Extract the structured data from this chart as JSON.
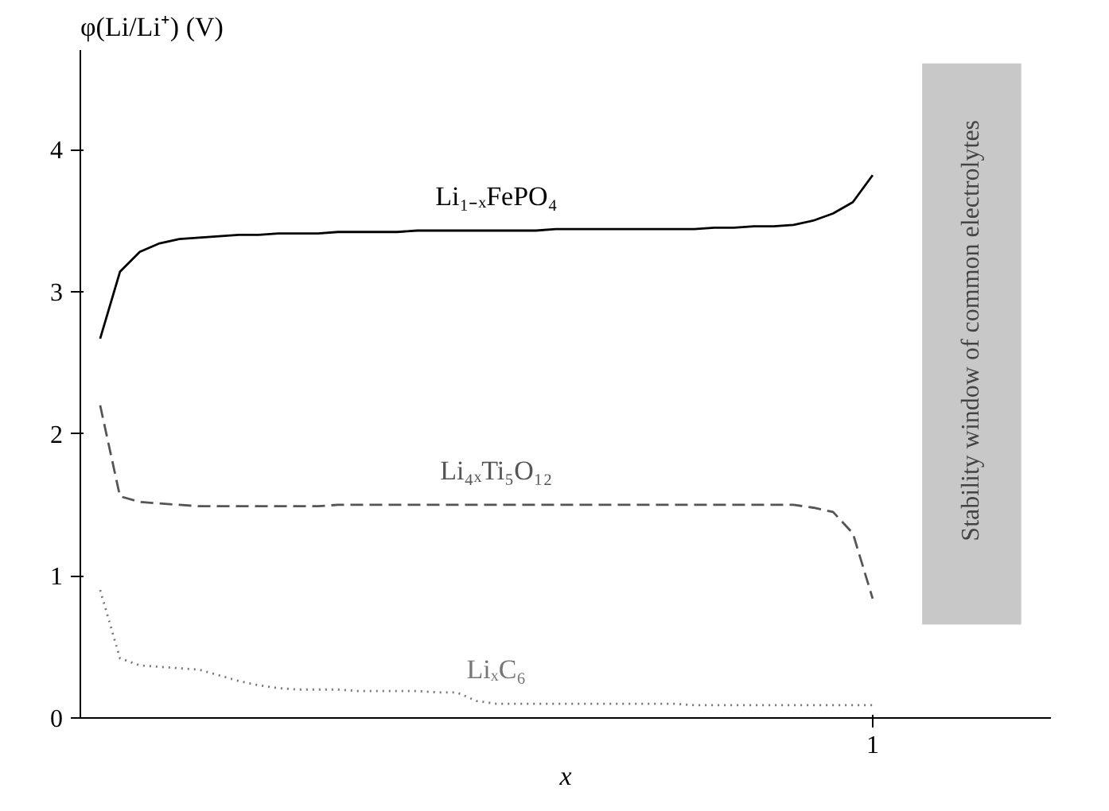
{
  "chart_data": {
    "type": "line",
    "ylabel": "φ(Li/Li⁺) (V)",
    "xlabel": "x",
    "ylim": [
      0,
      4.7
    ],
    "yticks": [
      0,
      1,
      2,
      3,
      4
    ],
    "grid": false,
    "marker": "none",
    "categories": [
      null,
      null,
      null,
      null,
      null,
      null,
      null,
      null,
      null,
      null,
      null,
      null,
      null,
      null,
      null,
      null,
      null,
      null,
      null,
      null,
      null,
      null,
      null,
      null,
      null,
      null,
      null,
      null,
      null,
      null,
      null,
      null,
      null,
      null,
      null,
      null,
      null,
      null,
      null,
      "1"
    ],
    "annotations": [
      "Stability window of common electrolytes"
    ],
    "series": [
      {
        "name": "Li₁₋ₓFePO₄",
        "color": "#000000",
        "line_style": "solid",
        "values": [
          2.67,
          3.14,
          3.28,
          3.34,
          3.37,
          3.38,
          3.39,
          3.4,
          3.4,
          3.41,
          3.41,
          3.41,
          3.42,
          3.42,
          3.42,
          3.42,
          3.43,
          3.43,
          3.43,
          3.43,
          3.43,
          3.43,
          3.43,
          3.44,
          3.44,
          3.44,
          3.44,
          3.44,
          3.44,
          3.44,
          3.44,
          3.45,
          3.45,
          3.46,
          3.46,
          3.47,
          3.5,
          3.55,
          3.63,
          3.82
        ]
      },
      {
        "name": "Li₄ₓTi₅O₁₂",
        "color": "#555555",
        "line_style": "dashed",
        "values": [
          2.2,
          1.56,
          1.52,
          1.51,
          1.5,
          1.49,
          1.49,
          1.49,
          1.49,
          1.49,
          1.49,
          1.49,
          1.5,
          1.5,
          1.5,
          1.5,
          1.5,
          1.5,
          1.5,
          1.5,
          1.5,
          1.5,
          1.5,
          1.5,
          1.5,
          1.5,
          1.5,
          1.5,
          1.5,
          1.5,
          1.5,
          1.5,
          1.5,
          1.5,
          1.5,
          1.5,
          1.48,
          1.45,
          1.3,
          0.84
        ]
      },
      {
        "name": "LiₓC₆",
        "color": "#777777",
        "line_style": "dotted",
        "values": [
          0.9,
          0.42,
          0.37,
          0.36,
          0.35,
          0.34,
          0.3,
          0.26,
          0.23,
          0.21,
          0.2,
          0.2,
          0.2,
          0.19,
          0.19,
          0.19,
          0.19,
          0.18,
          0.18,
          0.12,
          0.1,
          0.1,
          0.1,
          0.1,
          0.1,
          0.1,
          0.1,
          0.1,
          0.1,
          0.1,
          0.09,
          0.09,
          0.09,
          0.09,
          0.09,
          0.09,
          0.09,
          0.09,
          0.09,
          0.09
        ]
      }
    ]
  }
}
